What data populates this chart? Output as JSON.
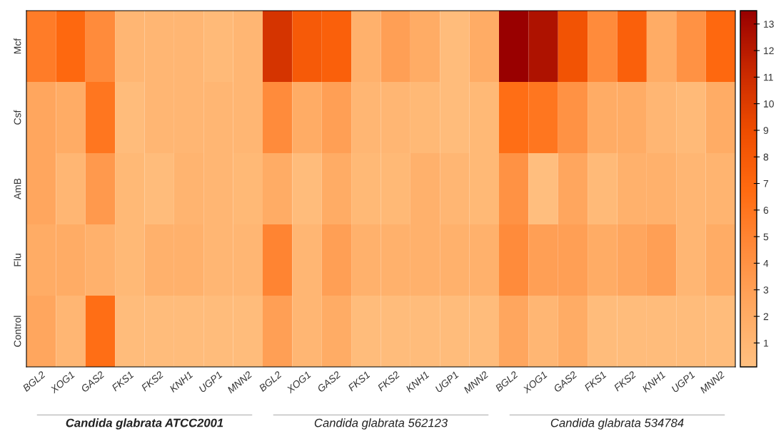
{
  "chart_data": {
    "type": "heatmap",
    "categories": [
      "BGL2",
      "XOG1",
      "GAS2",
      "FKS1",
      "FKS2",
      "KNH1",
      "UGP1",
      "MNN2",
      "BGL2",
      "XOG1",
      "GAS2",
      "FKS1",
      "FKS2",
      "KNH1",
      "UGP1",
      "MNN2",
      "BGL2",
      "XOG1",
      "GAS2",
      "FKS1",
      "FKS2",
      "KNH1",
      "UGP1",
      "MNN2"
    ],
    "y_categories": [
      "Mcf",
      "Csf",
      "AmB",
      "Flu",
      "Control"
    ],
    "cells": [
      [
        5.5,
        7,
        4.5,
        1,
        1,
        1,
        0.7,
        1,
        10.5,
        8,
        7.5,
        1.5,
        3,
        2,
        0.5,
        2,
        13.5,
        12.5,
        8.5,
        4.5,
        7.5,
        2,
        4,
        7
      ],
      [
        2.5,
        2,
        6,
        0.5,
        1,
        1,
        1,
        1,
        4.5,
        2,
        3,
        1,
        1,
        0.8,
        0.5,
        0.8,
        6.5,
        6,
        4,
        2,
        2,
        1,
        0.7,
        2
      ],
      [
        2.5,
        1,
        3.5,
        0.8,
        0.5,
        1.2,
        1,
        0.8,
        2,
        0.5,
        2,
        0.8,
        0.8,
        1.5,
        1,
        0.8,
        4,
        0.3,
        2.5,
        0.7,
        1.5,
        1.5,
        1,
        1.2
      ],
      [
        2,
        2,
        1.5,
        0.8,
        1.5,
        1.5,
        1,
        1,
        5,
        1,
        3,
        1.5,
        1.5,
        1.5,
        1.5,
        1.5,
        4.5,
        3,
        3,
        2,
        2.5,
        3,
        1,
        2
      ],
      [
        2.5,
        1,
        6.5,
        0.5,
        0.5,
        0.5,
        0.5,
        0.5,
        3,
        1,
        2,
        0.5,
        0.5,
        0.5,
        0.5,
        0.5,
        2.5,
        1,
        2,
        0.5,
        0.5,
        0.5,
        0.5,
        0.5
      ]
    ],
    "clim": [
      0.1,
      13.5
    ],
    "cticks": [
      1,
      2,
      3,
      4,
      5,
      6,
      7,
      8,
      9,
      10,
      11,
      12,
      13
    ],
    "annotations": [
      "Candida glabrata ATCC2001",
      "Candida glabrata 562123",
      "Candida glabrata 534784"
    ]
  }
}
